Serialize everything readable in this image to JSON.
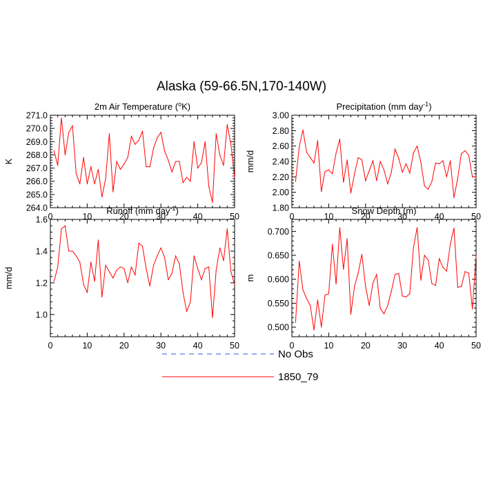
{
  "figure": {
    "title": "Alaska (59-66.5N,170-140W)"
  },
  "legend": {
    "items": [
      {
        "label": "No Obs",
        "color": "#3b4fe0",
        "style": "dashed"
      },
      {
        "label": "1850_79",
        "color": "#ff0000",
        "style": "solid"
      }
    ]
  },
  "chart_data": [
    {
      "type": "line",
      "title": "2m Air Temperature (°K)",
      "title_parts": [
        "2m Air Temperature (",
        "o",
        "K)"
      ],
      "xlabel": "",
      "ylabel": "K",
      "xlim": [
        0,
        50
      ],
      "ylim": [
        264.0,
        271.0
      ],
      "xticks": [
        0,
        10,
        20,
        30,
        40,
        50
      ],
      "yticks": [
        264.0,
        265.0,
        266.0,
        267.0,
        268.0,
        269.0,
        270.0,
        271.0
      ],
      "ytick_labels": [
        "264.0",
        "265.0",
        "266.0",
        "267.0",
        "268.0",
        "269.0",
        "270.0",
        "271.0"
      ],
      "grid": false,
      "series": [
        {
          "name": "1850_79",
          "color": "#ff0000",
          "x": [
            1,
            2,
            3,
            4,
            5,
            6,
            7,
            8,
            9,
            10,
            11,
            12,
            13,
            14,
            15,
            16,
            17,
            18,
            19,
            20,
            21,
            22,
            23,
            24,
            25,
            26,
            27,
            28,
            29,
            30,
            31,
            32,
            33,
            34,
            35,
            36,
            37,
            38,
            39,
            40,
            41,
            42,
            43,
            44,
            45,
            46,
            47,
            48,
            49,
            50
          ],
          "values": [
            268.3,
            267.2,
            270.8,
            268.0,
            269.7,
            270.2,
            266.6,
            265.8,
            267.8,
            265.8,
            267.1,
            265.8,
            266.9,
            264.8,
            266.2,
            269.6,
            265.2,
            267.5,
            266.9,
            267.3,
            267.8,
            269.4,
            268.8,
            269.1,
            269.8,
            267.1,
            267.1,
            268.5,
            269.3,
            269.7,
            268.3,
            267.6,
            266.7,
            267.5,
            267.5,
            265.9,
            266.3,
            266.0,
            269.0,
            267.0,
            267.4,
            269.0,
            265.6,
            264.4,
            269.6,
            268.0,
            267.2,
            270.3,
            268.8,
            266.3
          ]
        }
      ]
    },
    {
      "type": "line",
      "title": "Precipitation (mm day-1)",
      "title_parts": [
        "Precipitation (mm day",
        "-1",
        ")"
      ],
      "xlabel": "",
      "ylabel": "mm/d",
      "xlim": [
        0,
        50
      ],
      "ylim": [
        1.8,
        3.0
      ],
      "xticks": [
        0,
        10,
        20,
        30,
        40,
        50
      ],
      "yticks": [
        1.8,
        2.0,
        2.2,
        2.4,
        2.6,
        2.8,
        3.0
      ],
      "ytick_labels": [
        "1.80",
        "2.00",
        "2.20",
        "2.40",
        "2.60",
        "2.80",
        "3.00"
      ],
      "grid": false,
      "series": [
        {
          "name": "1850_79",
          "color": "#ff0000",
          "x": [
            1,
            2,
            3,
            4,
            5,
            6,
            7,
            8,
            9,
            10,
            11,
            12,
            13,
            14,
            15,
            16,
            17,
            18,
            19,
            20,
            21,
            22,
            23,
            24,
            25,
            26,
            27,
            28,
            29,
            30,
            31,
            32,
            33,
            34,
            35,
            36,
            37,
            38,
            39,
            40,
            41,
            42,
            43,
            44,
            45,
            46,
            47,
            48,
            49,
            50
          ],
          "values": [
            2.14,
            2.59,
            2.81,
            2.52,
            2.45,
            2.38,
            2.67,
            2.01,
            2.27,
            2.29,
            2.24,
            2.51,
            2.69,
            2.13,
            2.42,
            1.99,
            2.24,
            2.45,
            2.42,
            2.15,
            2.28,
            2.41,
            2.15,
            2.4,
            2.29,
            2.11,
            2.26,
            2.56,
            2.44,
            2.26,
            2.37,
            2.25,
            2.51,
            2.6,
            2.39,
            2.08,
            2.04,
            2.14,
            2.38,
            2.37,
            2.41,
            2.2,
            2.41,
            1.93,
            2.18,
            2.5,
            2.54,
            2.48,
            2.2,
            2.2
          ]
        }
      ]
    },
    {
      "type": "line",
      "title": "Runoff (mm day-1)",
      "title_parts": [
        "Runoff (mm day",
        "-1",
        ")"
      ],
      "xlabel": "",
      "ylabel": "mm/d",
      "xlim": [
        0,
        50
      ],
      "ylim": [
        0.86,
        1.6
      ],
      "xticks": [
        0,
        10,
        20,
        30,
        40,
        50
      ],
      "yticks": [
        1.0,
        1.2,
        1.4,
        1.6
      ],
      "ytick_labels": [
        "1.0",
        "1.2",
        "1.4",
        "1.6"
      ],
      "grid": false,
      "series": [
        {
          "name": "1850_79",
          "color": "#ff0000",
          "x": [
            1,
            2,
            3,
            4,
            5,
            6,
            7,
            8,
            9,
            10,
            11,
            12,
            13,
            14,
            15,
            16,
            17,
            18,
            19,
            20,
            21,
            22,
            23,
            24,
            25,
            26,
            27,
            28,
            29,
            30,
            31,
            32,
            33,
            34,
            35,
            36,
            37,
            38,
            39,
            40,
            41,
            42,
            43,
            44,
            45,
            46,
            47,
            48,
            49,
            50
          ],
          "values": [
            1.21,
            1.3,
            1.54,
            1.56,
            1.4,
            1.4,
            1.37,
            1.33,
            1.19,
            1.14,
            1.33,
            1.21,
            1.47,
            1.11,
            1.31,
            1.27,
            1.23,
            1.28,
            1.3,
            1.29,
            1.2,
            1.3,
            1.25,
            1.45,
            1.43,
            1.29,
            1.18,
            1.31,
            1.37,
            1.42,
            1.36,
            1.22,
            1.26,
            1.37,
            1.32,
            1.14,
            1.02,
            1.08,
            1.37,
            1.29,
            1.22,
            1.29,
            1.3,
            0.98,
            1.28,
            1.42,
            1.34,
            1.54,
            1.27,
            1.19
          ]
        }
      ]
    },
    {
      "type": "line",
      "title": "Snow Depth (m)",
      "title_parts": [
        "Snow Depth (m)"
      ],
      "xlabel": "",
      "ylabel": "m",
      "xlim": [
        0,
        50
      ],
      "ylim": [
        0.48,
        0.725
      ],
      "xticks": [
        0,
        10,
        20,
        30,
        40,
        50
      ],
      "yticks": [
        0.5,
        0.55,
        0.6,
        0.65,
        0.7
      ],
      "ytick_labels": [
        "0.500",
        "0.550",
        "0.600",
        "0.650",
        "0.700"
      ],
      "grid": false,
      "series": [
        {
          "name": "1850_79",
          "color": "#ff0000",
          "x": [
            1,
            2,
            3,
            4,
            5,
            6,
            7,
            8,
            9,
            10,
            11,
            12,
            13,
            14,
            15,
            16,
            17,
            18,
            19,
            20,
            21,
            22,
            23,
            24,
            25,
            26,
            27,
            28,
            29,
            30,
            31,
            32,
            33,
            34,
            35,
            36,
            37,
            38,
            39,
            40,
            41,
            42,
            43,
            44,
            45,
            46,
            47,
            48,
            49,
            50
          ],
          "values": [
            0.51,
            0.638,
            0.578,
            0.56,
            0.545,
            0.494,
            0.557,
            0.5,
            0.567,
            0.57,
            0.673,
            0.59,
            0.708,
            0.621,
            0.685,
            0.527,
            0.585,
            0.613,
            0.652,
            0.585,
            0.545,
            0.592,
            0.61,
            0.539,
            0.528,
            0.545,
            0.575,
            0.61,
            0.612,
            0.565,
            0.563,
            0.57,
            0.666,
            0.708,
            0.598,
            0.65,
            0.64,
            0.591,
            0.587,
            0.643,
            0.625,
            0.617,
            0.673,
            0.707,
            0.583,
            0.585,
            0.616,
            0.613,
            0.538,
            0.65
          ]
        }
      ]
    }
  ]
}
